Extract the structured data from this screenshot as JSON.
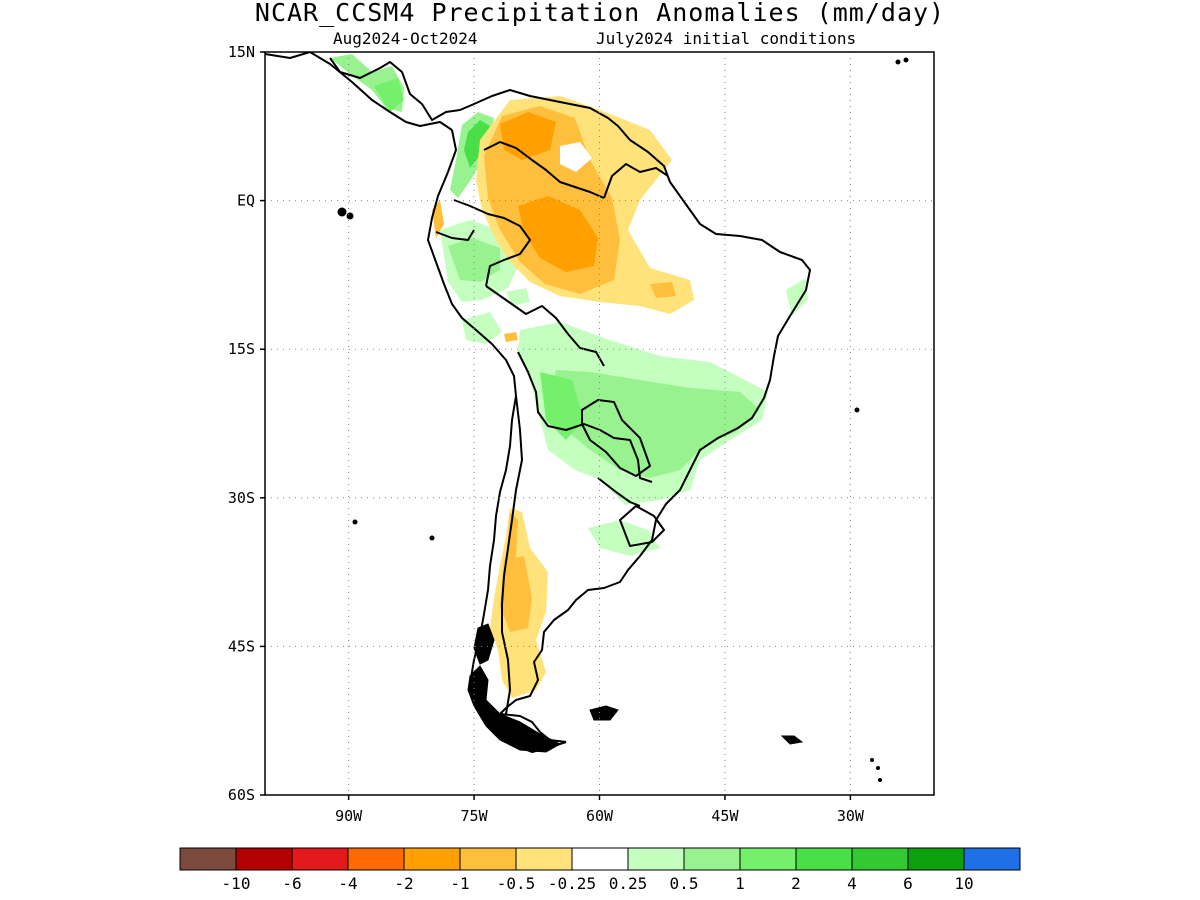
{
  "title": "NCAR_CCSM4 Precipitation Anomalies (mm/day)",
  "subtitle_left": "Aug2024-Oct2024",
  "subtitle_right": "July2024 initial conditions",
  "map": {
    "lat_ticks": [
      "15N",
      "EQ",
      "15S",
      "30S",
      "45S",
      "60S"
    ],
    "lon_ticks": [
      "90W",
      "75W",
      "60W",
      "45W",
      "30W"
    ],
    "lon_range": [
      -100,
      -20
    ],
    "lat_range": [
      -60,
      15
    ],
    "grid": "dotted"
  },
  "colorbar": {
    "colors": [
      "#7b4a3d",
      "#b30000",
      "#e31a1c",
      "#ff6b00",
      "#ffa000",
      "#ffbe3b",
      "#ffe27a",
      "#ffffff",
      "#c5ffc0",
      "#97f28f",
      "#74f06a",
      "#48e046",
      "#33c933",
      "#0da00d",
      "#1f6fe6"
    ],
    "labels": [
      "-10",
      "-6",
      "-4",
      "-2",
      "-1",
      "-0.5",
      "-0.25",
      "0.25",
      "0.5",
      "1",
      "2",
      "4",
      "6",
      "10"
    ]
  }
}
